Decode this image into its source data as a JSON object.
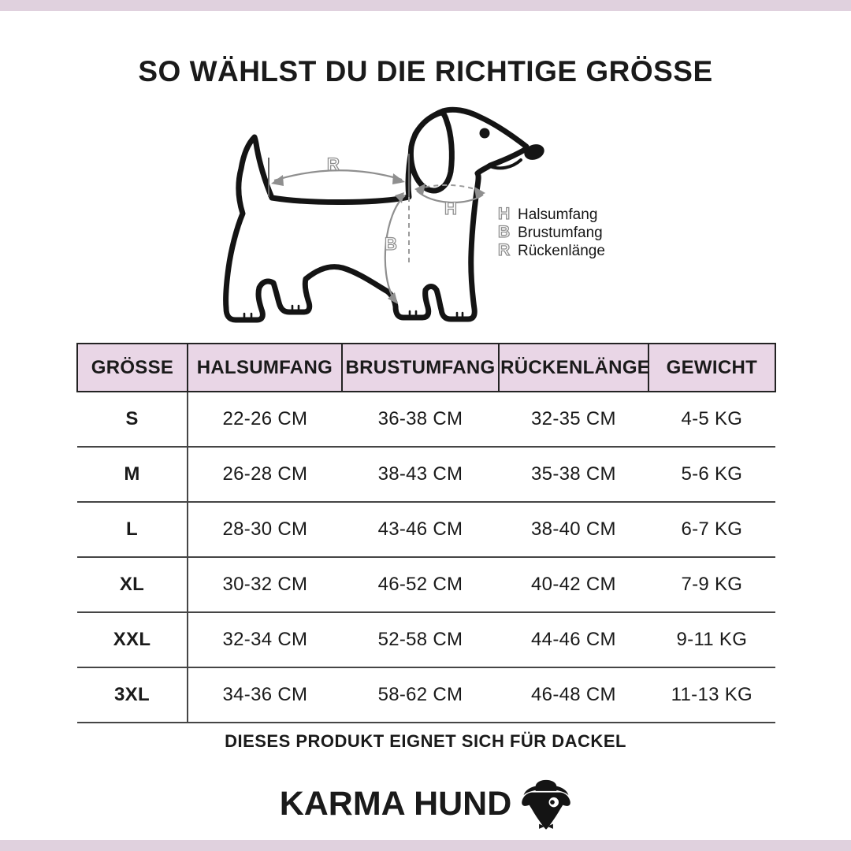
{
  "header": {
    "title": "SO WÄHLST DU DIE RICHTIGE GRÖSSE"
  },
  "diagram": {
    "marker_labels": {
      "r": "R",
      "h": "H",
      "b": "B"
    },
    "legend": [
      {
        "letter": "H",
        "label": "Halsumfang"
      },
      {
        "letter": "B",
        "label": "Brustumfang"
      },
      {
        "letter": "R",
        "label": "Rückenlänge"
      }
    ]
  },
  "size_table": {
    "columns": [
      "GRÖSSE",
      "HALSUMFANG",
      "BRUSTUMFANG",
      "RÜCKENLÄNGE",
      "GEWICHT"
    ],
    "rows": [
      [
        "S",
        "22-26 CM",
        "36-38 CM",
        "32-35 CM",
        "4-5 KG"
      ],
      [
        "M",
        "26-28 CM",
        "38-43 CM",
        "35-38 CM",
        "5-6 KG"
      ],
      [
        "L",
        "28-30 CM",
        "43-46 CM",
        "38-40 CM",
        "6-7 KG"
      ],
      [
        "XL",
        "30-32 CM",
        "46-52 CM",
        "40-42 CM",
        "7-9 KG"
      ],
      [
        "XXL",
        "32-34 CM",
        "52-58 CM",
        "44-46 CM",
        "9-11 KG"
      ],
      [
        "3XL",
        "34-36 CM",
        "58-62 CM",
        "46-48 CM",
        "11-13 KG"
      ]
    ]
  },
  "footer": {
    "note": "DIESES PRODUKT EIGNET SICH FÜR DACKEL",
    "brand": "KARMA HUND"
  },
  "colors": {
    "frame_pink": "#e0d1de",
    "table_header_pink": "#e9d6e6",
    "measure_gray": "#8f8f8f",
    "line_dark": "#232323"
  }
}
